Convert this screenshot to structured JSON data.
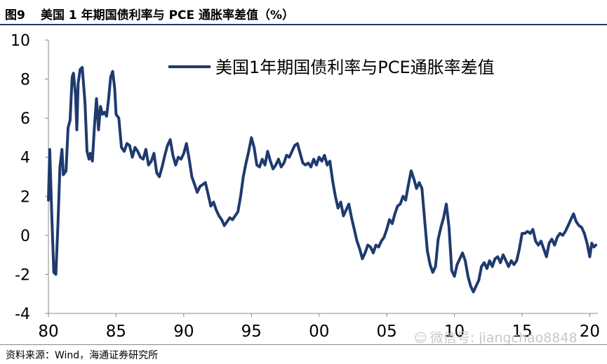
{
  "figure": {
    "label": "图9",
    "title": "美国 1 年期国债利率与 PCE 通胀率差值（%）"
  },
  "source": "资料来源：Wind，海通证券研究所",
  "watermark": "微信号: jiangchao8848",
  "colors": {
    "line": "#1f3a6e",
    "rule": "#1f3864"
  },
  "chart_data": {
    "type": "line",
    "title": "",
    "xlabel": "",
    "ylabel": "",
    "xlim": [
      1980,
      2020.6
    ],
    "ylim": [
      -4,
      10
    ],
    "yticks": [
      10,
      8,
      6,
      4,
      2,
      0,
      -2,
      -4
    ],
    "xticks": [
      "80",
      "85",
      "90",
      "95",
      "00",
      "05",
      "10",
      "15",
      "20"
    ],
    "xtick_years": [
      1980,
      1985,
      1990,
      1995,
      2000,
      2005,
      2010,
      2015,
      2020
    ],
    "grid": false,
    "legend": "top-right",
    "series": [
      {
        "name": "美国1年期国债利率与PCE通胀率差值",
        "points": [
          [
            1980.0,
            1.8
          ],
          [
            1980.1,
            4.4
          ],
          [
            1980.25,
            1.0
          ],
          [
            1980.4,
            -1.9
          ],
          [
            1980.55,
            -2.0
          ],
          [
            1980.7,
            0.5
          ],
          [
            1980.85,
            3.5
          ],
          [
            1981.0,
            4.4
          ],
          [
            1981.1,
            3.1
          ],
          [
            1981.3,
            3.3
          ],
          [
            1981.45,
            5.5
          ],
          [
            1981.6,
            5.9
          ],
          [
            1981.75,
            8.1
          ],
          [
            1981.85,
            8.3
          ],
          [
            1982.0,
            7.2
          ],
          [
            1982.1,
            5.4
          ],
          [
            1982.2,
            7.8
          ],
          [
            1982.35,
            8.5
          ],
          [
            1982.5,
            8.6
          ],
          [
            1982.7,
            6.8
          ],
          [
            1982.85,
            4.3
          ],
          [
            1983.0,
            3.9
          ],
          [
            1983.1,
            4.2
          ],
          [
            1983.25,
            3.8
          ],
          [
            1983.4,
            5.6
          ],
          [
            1983.55,
            7.0
          ],
          [
            1983.7,
            5.4
          ],
          [
            1983.85,
            6.6
          ],
          [
            1984.0,
            6.2
          ],
          [
            1984.15,
            6.3
          ],
          [
            1984.3,
            6.1
          ],
          [
            1984.45,
            7.0
          ],
          [
            1984.6,
            8.1
          ],
          [
            1984.75,
            8.4
          ],
          [
            1984.9,
            7.5
          ],
          [
            1985.0,
            6.2
          ],
          [
            1985.2,
            6.0
          ],
          [
            1985.4,
            4.5
          ],
          [
            1985.6,
            4.3
          ],
          [
            1985.8,
            4.7
          ],
          [
            1986.0,
            4.6
          ],
          [
            1986.2,
            4.0
          ],
          [
            1986.4,
            4.5
          ],
          [
            1986.6,
            4.3
          ],
          [
            1986.8,
            4.0
          ],
          [
            1987.0,
            3.9
          ],
          [
            1987.2,
            4.4
          ],
          [
            1987.4,
            3.6
          ],
          [
            1987.6,
            3.8
          ],
          [
            1987.8,
            4.2
          ],
          [
            1988.0,
            3.2
          ],
          [
            1988.2,
            3.0
          ],
          [
            1988.4,
            3.5
          ],
          [
            1988.6,
            4.1
          ],
          [
            1988.8,
            4.6
          ],
          [
            1989.0,
            4.9
          ],
          [
            1989.2,
            4.1
          ],
          [
            1989.4,
            3.6
          ],
          [
            1989.6,
            4.0
          ],
          [
            1989.8,
            3.9
          ],
          [
            1990.0,
            4.2
          ],
          [
            1990.2,
            4.7
          ],
          [
            1990.4,
            3.9
          ],
          [
            1990.6,
            3.0
          ],
          [
            1990.8,
            2.6
          ],
          [
            1991.0,
            2.2
          ],
          [
            1991.2,
            2.5
          ],
          [
            1991.4,
            2.6
          ],
          [
            1991.6,
            2.7
          ],
          [
            1991.8,
            2.1
          ],
          [
            1992.0,
            1.5
          ],
          [
            1992.2,
            1.7
          ],
          [
            1992.4,
            1.3
          ],
          [
            1992.6,
            1.0
          ],
          [
            1992.8,
            0.8
          ],
          [
            1993.0,
            0.5
          ],
          [
            1993.2,
            0.7
          ],
          [
            1993.4,
            0.9
          ],
          [
            1993.6,
            0.8
          ],
          [
            1993.8,
            1.0
          ],
          [
            1994.0,
            1.2
          ],
          [
            1994.2,
            2.0
          ],
          [
            1994.4,
            3.0
          ],
          [
            1994.6,
            3.7
          ],
          [
            1994.8,
            4.3
          ],
          [
            1995.0,
            5.0
          ],
          [
            1995.2,
            4.5
          ],
          [
            1995.4,
            3.6
          ],
          [
            1995.6,
            3.5
          ],
          [
            1995.8,
            3.9
          ],
          [
            1996.0,
            3.6
          ],
          [
            1996.2,
            4.3
          ],
          [
            1996.4,
            3.8
          ],
          [
            1996.6,
            3.4
          ],
          [
            1996.8,
            3.6
          ],
          [
            1997.0,
            3.9
          ],
          [
            1997.2,
            3.5
          ],
          [
            1997.4,
            3.7
          ],
          [
            1997.6,
            4.1
          ],
          [
            1997.8,
            4.0
          ],
          [
            1998.0,
            4.3
          ],
          [
            1998.2,
            4.6
          ],
          [
            1998.4,
            4.7
          ],
          [
            1998.6,
            4.2
          ],
          [
            1998.8,
            3.7
          ],
          [
            1999.0,
            3.6
          ],
          [
            1999.2,
            3.7
          ],
          [
            1999.4,
            3.5
          ],
          [
            1999.6,
            3.9
          ],
          [
            1999.8,
            3.6
          ],
          [
            2000.0,
            4.0
          ],
          [
            2000.2,
            3.8
          ],
          [
            2000.4,
            4.1
          ],
          [
            2000.6,
            3.6
          ],
          [
            2000.8,
            3.8
          ],
          [
            2001.0,
            2.8
          ],
          [
            2001.2,
            2.0
          ],
          [
            2001.4,
            1.4
          ],
          [
            2001.6,
            1.7
          ],
          [
            2001.8,
            1.0
          ],
          [
            2002.0,
            1.3
          ],
          [
            2002.2,
            1.6
          ],
          [
            2002.4,
            0.9
          ],
          [
            2002.6,
            0.3
          ],
          [
            2002.8,
            -0.3
          ],
          [
            2003.0,
            -0.7
          ],
          [
            2003.2,
            -1.2
          ],
          [
            2003.4,
            -0.9
          ],
          [
            2003.6,
            -0.5
          ],
          [
            2003.8,
            -0.6
          ],
          [
            2004.0,
            -0.9
          ],
          [
            2004.2,
            -0.5
          ],
          [
            2004.4,
            -0.6
          ],
          [
            2004.6,
            -0.3
          ],
          [
            2004.8,
            -0.1
          ],
          [
            2005.0,
            0.3
          ],
          [
            2005.2,
            0.8
          ],
          [
            2005.4,
            0.6
          ],
          [
            2005.6,
            1.1
          ],
          [
            2005.8,
            1.5
          ],
          [
            2006.0,
            1.6
          ],
          [
            2006.2,
            2.0
          ],
          [
            2006.4,
            1.8
          ],
          [
            2006.6,
            2.6
          ],
          [
            2006.8,
            3.3
          ],
          [
            2007.0,
            2.9
          ],
          [
            2007.2,
            2.4
          ],
          [
            2007.4,
            2.7
          ],
          [
            2007.6,
            2.4
          ],
          [
            2007.8,
            0.8
          ],
          [
            2008.0,
            -0.8
          ],
          [
            2008.2,
            -1.5
          ],
          [
            2008.4,
            -1.9
          ],
          [
            2008.6,
            -1.6
          ],
          [
            2008.8,
            -0.2
          ],
          [
            2009.0,
            0.4
          ],
          [
            2009.2,
            0.9
          ],
          [
            2009.4,
            1.6
          ],
          [
            2009.6,
            0.4
          ],
          [
            2009.8,
            -1.8
          ],
          [
            2010.0,
            -2.1
          ],
          [
            2010.2,
            -1.5
          ],
          [
            2010.4,
            -1.2
          ],
          [
            2010.6,
            -0.9
          ],
          [
            2010.8,
            -1.3
          ],
          [
            2011.0,
            -2.1
          ],
          [
            2011.2,
            -2.6
          ],
          [
            2011.4,
            -2.9
          ],
          [
            2011.6,
            -2.6
          ],
          [
            2011.8,
            -2.3
          ],
          [
            2012.0,
            -1.6
          ],
          [
            2012.2,
            -1.4
          ],
          [
            2012.4,
            -1.7
          ],
          [
            2012.6,
            -1.3
          ],
          [
            2012.8,
            -1.6
          ],
          [
            2013.0,
            -1.2
          ],
          [
            2013.2,
            -1.1
          ],
          [
            2013.4,
            -1.4
          ],
          [
            2013.6,
            -1.0
          ],
          [
            2013.8,
            -1.3
          ],
          [
            2014.0,
            -1.6
          ],
          [
            2014.2,
            -1.3
          ],
          [
            2014.4,
            -1.5
          ],
          [
            2014.6,
            -1.3
          ],
          [
            2014.8,
            -0.7
          ],
          [
            2015.0,
            0.1
          ],
          [
            2015.2,
            0.1
          ],
          [
            2015.4,
            0.2
          ],
          [
            2015.6,
            0.1
          ],
          [
            2015.8,
            0.3
          ],
          [
            2016.0,
            -0.3
          ],
          [
            2016.2,
            -0.5
          ],
          [
            2016.4,
            -0.3
          ],
          [
            2016.6,
            -0.7
          ],
          [
            2016.8,
            -1.1
          ],
          [
            2017.0,
            -0.4
          ],
          [
            2017.2,
            -0.2
          ],
          [
            2017.4,
            -0.5
          ],
          [
            2017.6,
            -0.1
          ],
          [
            2017.8,
            0.1
          ],
          [
            2018.0,
            0.0
          ],
          [
            2018.2,
            0.2
          ],
          [
            2018.4,
            0.5
          ],
          [
            2018.6,
            0.8
          ],
          [
            2018.8,
            1.1
          ],
          [
            2019.0,
            0.7
          ],
          [
            2019.2,
            0.5
          ],
          [
            2019.4,
            0.4
          ],
          [
            2019.6,
            0.1
          ],
          [
            2019.8,
            -0.4
          ],
          [
            2020.0,
            -1.1
          ],
          [
            2020.15,
            -0.4
          ],
          [
            2020.3,
            -0.6
          ],
          [
            2020.45,
            -0.5
          ]
        ]
      }
    ]
  }
}
